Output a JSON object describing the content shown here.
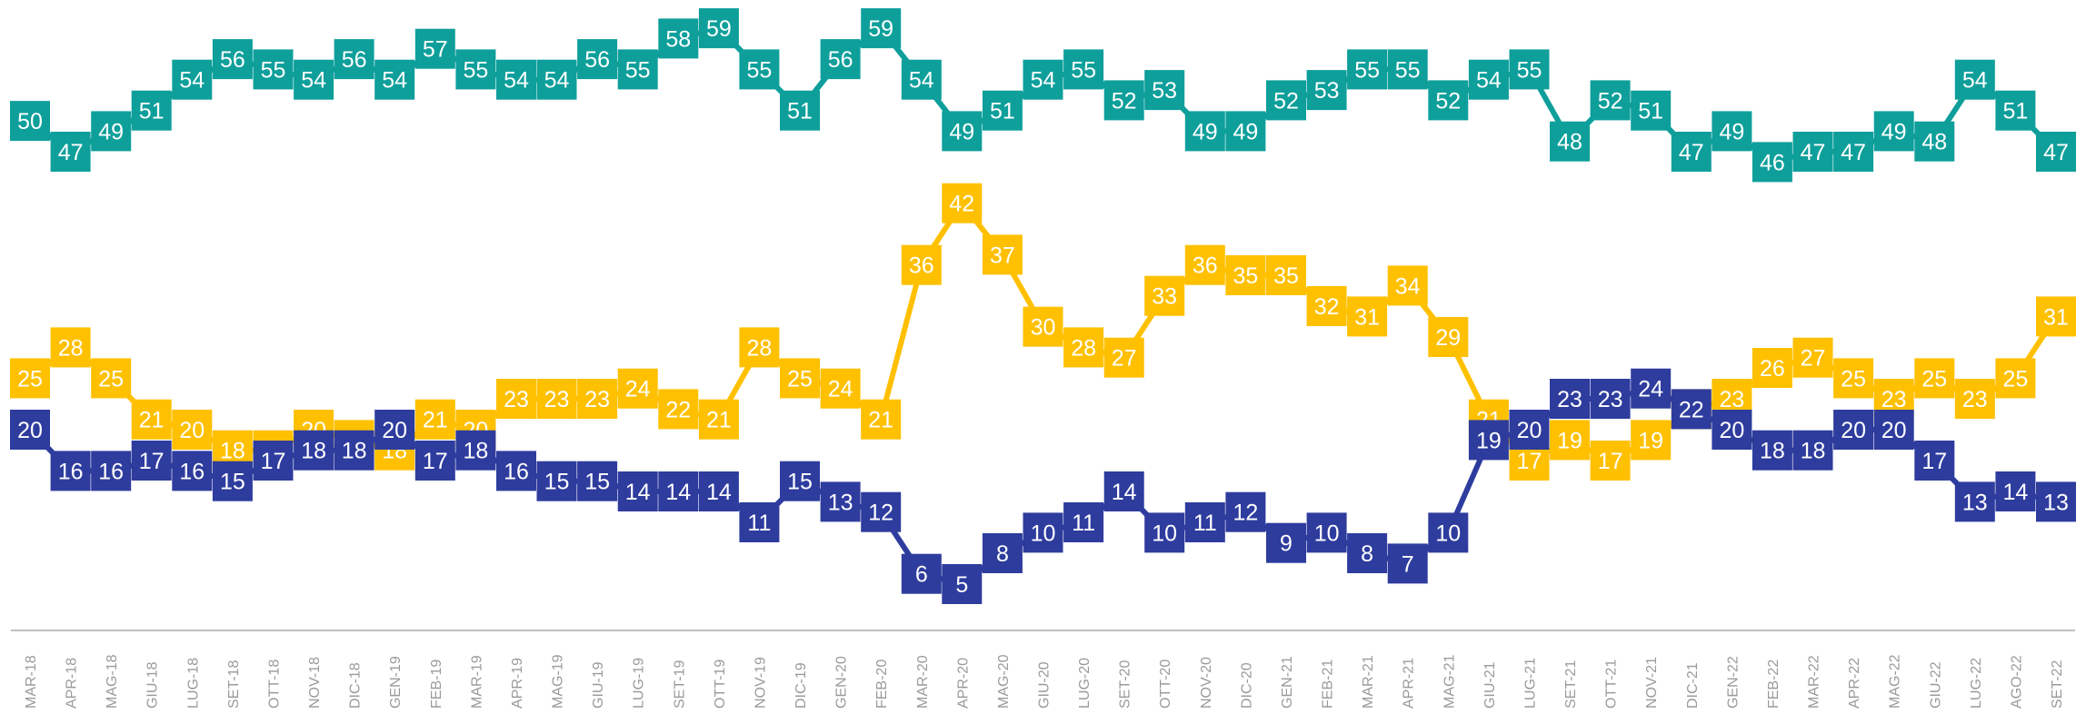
{
  "chart_data": {
    "type": "line",
    "categories": [
      "MAR-18",
      "APR-18",
      "MAG-18",
      "GIU-18",
      "LUG-18",
      "SET-18",
      "OTT-18",
      "NOV-18",
      "DIC-18",
      "GEN-19",
      "FEB-19",
      "MAR-19",
      "APR-19",
      "MAG-19",
      "GIU-19",
      "LUG-19",
      "SET-19",
      "OTT-19",
      "NOV-19",
      "DIC-19",
      "GEN-20",
      "FEB-20",
      "MAR-20",
      "APR-20",
      "MAG-20",
      "GIU-20",
      "LUG-20",
      "SET-20",
      "OTT-20",
      "NOV-20",
      "DIC-20",
      "GEN-21",
      "FEB-21",
      "MAR-21",
      "APR-21",
      "MAG-21",
      "GIU-21",
      "LUG-21",
      "SET-21",
      "OTT-21",
      "NOV-21",
      "DIC-21",
      "GEN-22",
      "FEB-22",
      "MAR-22",
      "APR-22",
      "MAG-22",
      "GIU-22",
      "LUG-22",
      "AGO-22",
      "SET-22"
    ],
    "series": [
      {
        "color": "#0e9f9b",
        "values": [
          50,
          47,
          49,
          51,
          54,
          56,
          55,
          54,
          56,
          54,
          57,
          55,
          54,
          54,
          56,
          55,
          58,
          59,
          55,
          51,
          56,
          59,
          54,
          49,
          51,
          54,
          55,
          52,
          53,
          49,
          49,
          52,
          53,
          55,
          55,
          52,
          54,
          55,
          48,
          52,
          51,
          47,
          49,
          46,
          47,
          47,
          49,
          48,
          54,
          51,
          47
        ]
      },
      {
        "color": "#ffc000",
        "values": [
          25,
          28,
          25,
          21,
          20,
          18,
          18,
          20,
          19,
          18,
          21,
          20,
          23,
          23,
          23,
          24,
          22,
          21,
          28,
          25,
          24,
          21,
          36,
          42,
          37,
          30,
          28,
          27,
          33,
          36,
          35,
          35,
          32,
          31,
          34,
          29,
          21,
          17,
          19,
          17,
          19,
          22,
          23,
          26,
          27,
          25,
          23,
          25,
          23,
          25,
          31
        ]
      },
      {
        "color": "#2e3c9e",
        "values": [
          20,
          16,
          16,
          17,
          16,
          15,
          17,
          18,
          18,
          20,
          17,
          18,
          16,
          15,
          15,
          14,
          14,
          14,
          11,
          15,
          13,
          12,
          6,
          5,
          8,
          10,
          11,
          14,
          10,
          11,
          12,
          9,
          10,
          8,
          7,
          10,
          19,
          20,
          23,
          23,
          24,
          22,
          20,
          18,
          18,
          20,
          20,
          17,
          13,
          14,
          13
        ]
      }
    ],
    "title": "",
    "xlabel": "",
    "ylabel": "",
    "ylim": [
      0,
      62
    ],
    "grid": false,
    "legend": "none"
  }
}
